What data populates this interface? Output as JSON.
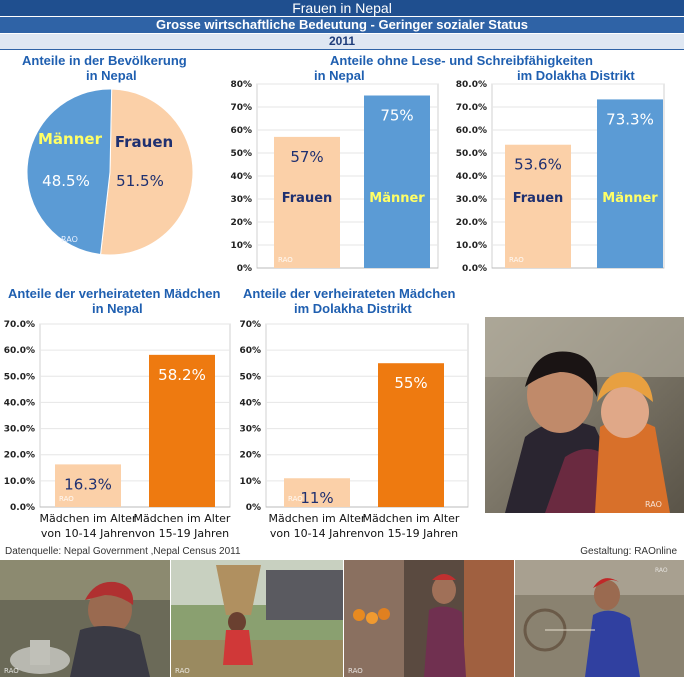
{
  "header": {
    "title": "Frauen in Nepal",
    "subtitle": "Grosse wirtschaftliche Bedeutung - Geringer sozialer Status",
    "year": "2011"
  },
  "colors": {
    "band_dark": "#1f4f8f",
    "band_mid": "#2f63a6",
    "title_blue": "#1f5fb0",
    "women": "#fbd0a8",
    "men": "#5b9bd5",
    "girls_young": "#fbd0a8",
    "girls_old": "#ee7a10",
    "yellow_label": "#ffff66",
    "navy_label": "#1f3070"
  },
  "chart_data": [
    {
      "id": "pie",
      "type": "pie",
      "title": "Anteile in der Bevölkerung",
      "subtitle": "in Nepal",
      "slices": [
        {
          "name": "Frauen",
          "value": 51.5,
          "label": "51.5%",
          "color": "#fbd0a8"
        },
        {
          "name": "Männer",
          "value": 48.5,
          "label": "48.5%",
          "color": "#5b9bd5"
        }
      ],
      "watermark": "RAO"
    },
    {
      "id": "lit_nepal",
      "type": "bar",
      "title": "Anteile ohne Lese- und Schreibfähigkeiten",
      "subtitle": "in Nepal",
      "categories": [
        "Frauen",
        "Männer"
      ],
      "values": [
        57,
        75
      ],
      "value_labels": [
        "57%",
        "75%"
      ],
      "colors": [
        "#fbd0a8",
        "#5b9bd5"
      ],
      "ylim": [
        0,
        80
      ],
      "yticks": [
        0,
        10,
        20,
        30,
        40,
        50,
        60,
        70,
        80
      ],
      "tick_labels": [
        "0%",
        "10%",
        "20%",
        "30%",
        "40%",
        "50%",
        "60%",
        "70%",
        "80%"
      ],
      "watermark": "RAO"
    },
    {
      "id": "lit_dolakha",
      "type": "bar",
      "title": "",
      "subtitle": "im Dolakha Distrikt",
      "categories": [
        "Frauen",
        "Männer"
      ],
      "values": [
        53.6,
        73.3
      ],
      "value_labels": [
        "53.6%",
        "73.3%"
      ],
      "colors": [
        "#fbd0a8",
        "#5b9bd5"
      ],
      "ylim": [
        0,
        80
      ],
      "yticks": [
        0,
        10,
        20,
        30,
        40,
        50,
        60,
        70,
        80
      ],
      "tick_labels": [
        "0.0%",
        "10.0%",
        "20.0%",
        "30.0%",
        "40.0%",
        "50.0%",
        "60.0%",
        "70.0%",
        "80.0%"
      ],
      "watermark": "RAO"
    },
    {
      "id": "married_nepal",
      "type": "bar",
      "title": "Anteile der verheirateten Mädchen",
      "subtitle": "in Nepal",
      "categories": [
        "Mädchen im Alter von 10-14 Jahren",
        "Mädchen im Alter von 15-19 Jahren"
      ],
      "category_lines": [
        [
          "Mädchen im Alter",
          "von 10-14 Jahren"
        ],
        [
          "Mädchen im Alter",
          "von 15-19 Jahren"
        ]
      ],
      "values": [
        16.3,
        58.2
      ],
      "value_labels": [
        "16.3%",
        "58.2%"
      ],
      "colors": [
        "#fbd0a8",
        "#ee7a10"
      ],
      "ylim": [
        0,
        70
      ],
      "yticks": [
        0,
        10,
        20,
        30,
        40,
        50,
        60,
        70
      ],
      "tick_labels": [
        "0.0%",
        "10.0%",
        "20.0%",
        "30.0%",
        "40.0%",
        "50.0%",
        "60.0%",
        "70.0%"
      ],
      "watermark": "RAO"
    },
    {
      "id": "married_dolakha",
      "type": "bar",
      "title": "Anteile der verheirateten Mädchen",
      "subtitle": "im Dolakha Distrikt",
      "categories": [
        "Mädchen im Alter von 10-14 Jahren",
        "Mädchen im Alter von 15-19 Jahren"
      ],
      "category_lines": [
        [
          "Mädchen im Alter",
          "von 10-14 Jahren"
        ],
        [
          "Mädchen im Alter",
          "von 15-19 Jahren"
        ]
      ],
      "values": [
        11,
        55
      ],
      "value_labels": [
        "11%",
        "55%"
      ],
      "colors": [
        "#fbd0a8",
        "#ee7a10"
      ],
      "ylim": [
        0,
        70
      ],
      "yticks": [
        0,
        10,
        20,
        30,
        40,
        50,
        60,
        70
      ],
      "tick_labels": [
        "0%",
        "10%",
        "20%",
        "30%",
        "40%",
        "50%",
        "60%",
        "70%"
      ],
      "watermark": "RAO"
    }
  ],
  "footer": {
    "source": "Datenquelle: Nepal Government ,Nepal Census 2011",
    "credit": "Gestaltung: RAOnline"
  },
  "photos": {
    "watermark": "RAO"
  }
}
